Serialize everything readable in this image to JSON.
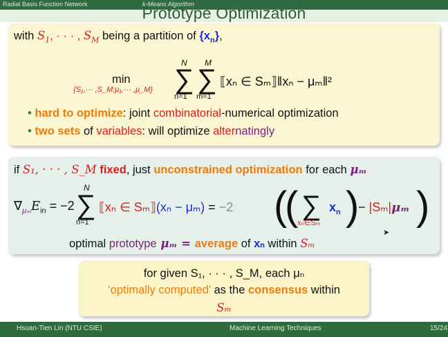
{
  "header": {
    "nav_left": "Radial Basis Function Network",
    "nav_right": "k-Means Algorithm",
    "title": "Prototype Optimization"
  },
  "box1": {
    "line1": {
      "pre": "with ",
      "s1": "S",
      "sub1": "1",
      "dots": ", · · · , ",
      "sM": "S",
      "subM": "M",
      "mid": " being a partition of ",
      "set": "{x",
      "setsub": "n",
      "setend": "}",
      "end": ","
    },
    "formula": {
      "min": "min",
      "min_sub": "{S₁,··· ,S_M;μ₁,··· ,μ_M}",
      "N": "N",
      "n1": "n=1",
      "M": "M",
      "m1": "m=1",
      "term": "⟦xₙ ∈ Sₘ⟧‖xₙ − μₘ‖²"
    },
    "bullets": [
      {
        "parts": [
          [
            "hard to optimize",
            "orange bold"
          ],
          [
            ": joint ",
            ""
          ],
          [
            "combinatorial",
            "red"
          ],
          [
            "-numerical optimization",
            ""
          ]
        ]
      },
      {
        "parts": [
          [
            "two sets",
            "orange bold"
          ],
          [
            " of ",
            ""
          ],
          [
            "variables",
            "red"
          ],
          [
            ": will optimize ",
            ""
          ],
          [
            "alter",
            "red"
          ],
          [
            "natingly",
            "purple"
          ]
        ]
      }
    ]
  },
  "box2": {
    "line1": {
      "pre": "if ",
      "s": "S₁, · · · , S_M",
      "fixed": " fixed",
      "mid": ", just ",
      "unc": "unconstrained optimization",
      "post": " for each ",
      "mu": "μₘ"
    },
    "grad": {
      "lhs": "∇",
      "lhs_sub": "μₘ",
      "E": "E",
      "E_sub": "in",
      "eq1": " = −2",
      "N": "N",
      "n1": "n=1",
      "term1": "⟦xₙ ∈ Sₘ⟧",
      "term2": "(xₙ − μₘ)",
      "eq2": " = ",
      "neg2": "−2",
      "inner_sub": "xₙ∈Sₘ",
      "x": "x",
      "x_sub": "n",
      "minus": " − ",
      "card": "|Sₘ|",
      "mu": "μₘ"
    },
    "line3": {
      "pre": "optimal ",
      "prot": "prototype",
      "mu": " μₘ = ",
      "avg": "average",
      "of": " of ",
      "x": "xₙ",
      "within": " within ",
      "S": "Sₘ"
    }
  },
  "box3": {
    "l1": "for given S₁, · · · , S_M, each μₙ",
    "l2a": "‘optimally computed’",
    "l2b": " as the ",
    "l2c": "consensus",
    "l2d": " within",
    "l3": "Sₘ"
  },
  "footer": {
    "author": "Hsuan-Tien Lin  (NTU CSIE)",
    "course": "Machine Learning Techniques",
    "page": "15/24"
  }
}
